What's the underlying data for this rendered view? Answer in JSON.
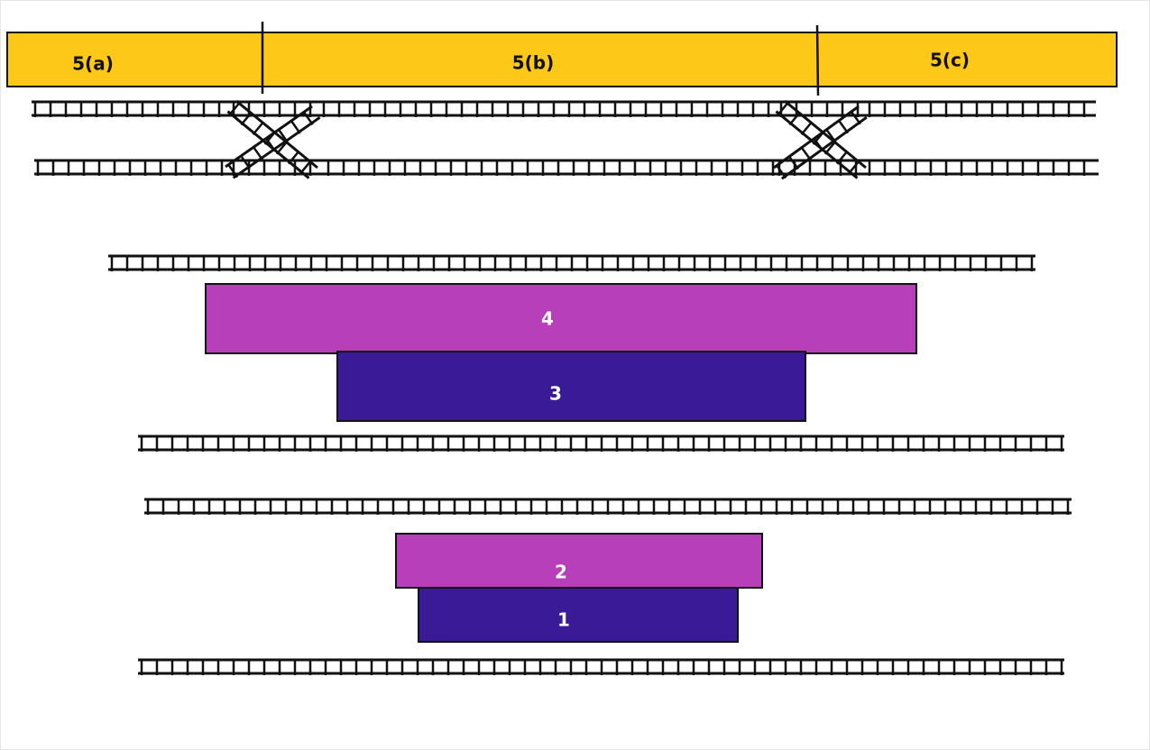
{
  "top_bar": {
    "segments": [
      "5(a)",
      "5(b)",
      "5(c)"
    ]
  },
  "blocks": [
    {
      "label": "4"
    },
    {
      "label": "3"
    },
    {
      "label": "2"
    },
    {
      "label": "1"
    }
  ]
}
